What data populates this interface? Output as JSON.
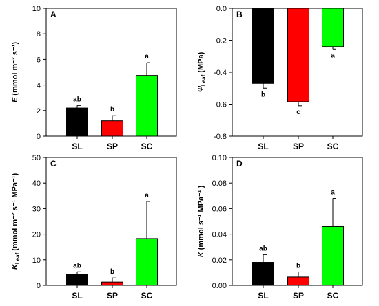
{
  "chart_data": [
    {
      "type": "bar",
      "panel": "A",
      "categories": [
        "SL",
        "SP",
        "SC"
      ],
      "values": [
        2.2,
        1.2,
        4.75
      ],
      "errors": [
        0.2,
        0.4,
        1.0
      ],
      "significance": [
        "ab",
        "b",
        "a"
      ],
      "colors": [
        "#000000",
        "#ff0000",
        "#00ff00"
      ],
      "ylabel": {
        "italic": "E",
        "rest": " (mmol m⁻² s⁻¹)"
      },
      "ylim": [
        0,
        10
      ],
      "yticks": [
        0,
        2,
        4,
        6,
        8,
        10
      ],
      "ytick_labels": [
        "0",
        "2",
        "4",
        "6",
        "8",
        "10"
      ],
      "grid": false
    },
    {
      "type": "bar",
      "panel": "B",
      "categories": [
        "SL",
        "SP",
        "SC"
      ],
      "values": [
        -0.47,
        -0.585,
        -0.24
      ],
      "errors": [
        0.03,
        0.025,
        0.015
      ],
      "significance": [
        "b",
        "c",
        "a"
      ],
      "colors": [
        "#000000",
        "#ff0000",
        "#00ff00"
      ],
      "ylabel": {
        "italic": "Ψ",
        "sub": "Leaf",
        "rest": " (MPa)"
      },
      "ylim": [
        -0.8,
        0
      ],
      "yticks": [
        -0.8,
        -0.6,
        -0.4,
        -0.2,
        0
      ],
      "ytick_labels": [
        "-0.8",
        "-0.6",
        "-0.4",
        "-0.2",
        "0.0"
      ],
      "grid": false
    },
    {
      "type": "bar",
      "panel": "C",
      "categories": [
        "SL",
        "SP",
        "SC"
      ],
      "values": [
        4.3,
        1.3,
        18.3
      ],
      "errors": [
        1.0,
        1.6,
        14.5
      ],
      "significance": [
        "ab",
        "b",
        "a"
      ],
      "colors": [
        "#000000",
        "#ff0000",
        "#00ff00"
      ],
      "ylabel": {
        "italic": "K",
        "sub": "Leaf",
        "rest": " (mmol m⁻² s⁻¹ MPa⁻¹)"
      },
      "ylim": [
        0,
        50
      ],
      "yticks": [
        0,
        10,
        20,
        30,
        40,
        50
      ],
      "ytick_labels": [
        "0",
        "10",
        "20",
        "30",
        "40",
        "50"
      ],
      "grid": false
    },
    {
      "type": "bar",
      "panel": "D",
      "categories": [
        "SL",
        "SP",
        "SC"
      ],
      "values": [
        0.018,
        0.0065,
        0.046
      ],
      "errors": [
        0.006,
        0.004,
        0.022
      ],
      "significance": [
        "ab",
        "b",
        "a"
      ],
      "colors": [
        "#000000",
        "#ff0000",
        "#00ff00"
      ],
      "ylabel": {
        "italic": "K",
        "rest": " (mmol s⁻¹ MPa⁻¹ )"
      },
      "ylim": [
        0,
        0.1
      ],
      "yticks": [
        0,
        0.02,
        0.04,
        0.06,
        0.08,
        0.1
      ],
      "ytick_labels": [
        "0.00",
        "0.02",
        "0.04",
        "0.06",
        "0.08",
        "0.10"
      ],
      "grid": false
    }
  ]
}
